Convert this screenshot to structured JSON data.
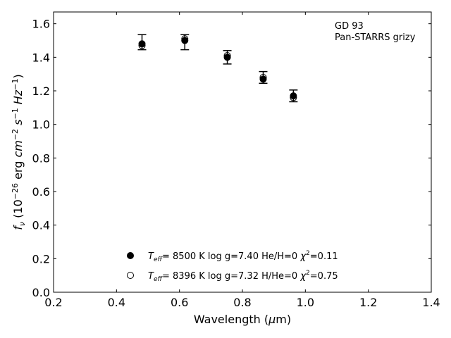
{
  "chart_data": {
    "type": "scatter",
    "title": "",
    "xlabel": "Wavelength (μm)",
    "ylabel": "f_ν (10^-26 erg cm^-2 s^-1 Hz^-1)",
    "xlim": [
      0.2,
      1.4
    ],
    "ylim": [
      0.0,
      1.67
    ],
    "xticks": [
      "0.2",
      "0.4",
      "0.6",
      "0.8",
      "1.0",
      "1.2",
      "1.4"
    ],
    "yticks": [
      "0.0",
      "0.2",
      "0.4",
      "0.6",
      "0.8",
      "1.0",
      "1.2",
      "1.4",
      "1.6"
    ],
    "grid": false,
    "annotation": [
      "GD 93",
      "Pan-STARRS grizy"
    ],
    "observed": {
      "x": [
        0.481,
        0.617,
        0.752,
        0.866,
        0.962
      ],
      "y": [
        1.49,
        1.49,
        1.4,
        1.28,
        1.17
      ],
      "yerr": [
        0.045,
        0.045,
        0.04,
        0.035,
        0.035
      ]
    },
    "series": [
      {
        "name": "T_eff= 8500 K log g=7.40 He/H=0 χ²=0.11",
        "marker": "filled-circle",
        "x": [
          0.481,
          0.617,
          0.752,
          0.866,
          0.962
        ],
        "y": [
          1.48,
          1.5,
          1.4,
          1.27,
          1.17
        ]
      },
      {
        "name": "T_eff= 8396 K log g=7.32 H/He=0 χ²=0.75",
        "marker": "open-circle",
        "x": [
          0.481,
          0.617,
          0.752,
          0.866,
          0.962
        ],
        "y": [
          1.47,
          1.51,
          1.41,
          1.28,
          1.16
        ]
      }
    ],
    "legend": {
      "placement": "lower-center",
      "entries": [
        {
          "teff": "8500 K",
          "logg": "log g=7.40",
          "comp": "He/H=0",
          "chi": "=0.11"
        },
        {
          "teff": "8396 K",
          "logg": "log g=7.32",
          "comp": "H/He=0",
          "chi": "=0.75"
        }
      ]
    }
  }
}
